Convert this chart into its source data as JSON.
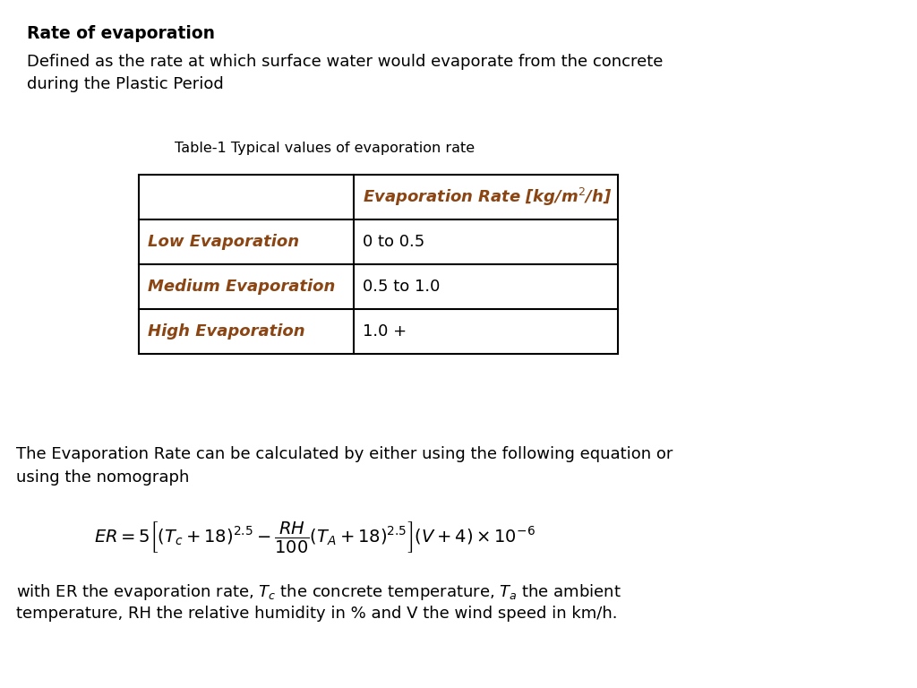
{
  "title": "Rate of evaporation",
  "subtitle_line1": "Defined as the rate at which surface water would evaporate from the concrete",
  "subtitle_line2": "during the Plastic Period",
  "table_caption": "Table-1 Typical values of evaporation rate",
  "table_header_col2": "Evaporation Rate [kg/m²/h]",
  "table_rows": [
    [
      "Low Evaporation",
      "0 to 0.5"
    ],
    [
      "Medium Evaporation",
      "0.5 to 1.0"
    ],
    [
      "High Evaporation",
      "1.0 +"
    ]
  ],
  "table_color": "#8B4513",
  "evap_line1": "The Evaporation Rate can be calculated by either using the following equation or",
  "evap_line2": "using the nomograph",
  "footer_line1": "with ER the evaporation rate, $T_c$ the concrete temperature, $T_a$ the ambient",
  "footer_line2": "temperature, RH the relative humidity in % and V the wind speed in km/h.",
  "bg_color": "#ffffff",
  "text_color": "#000000",
  "title_fontsize": 13.5,
  "body_fontsize": 13,
  "table_fontsize": 13,
  "caption_fontsize": 11.5,
  "eq_fontsize": 14
}
